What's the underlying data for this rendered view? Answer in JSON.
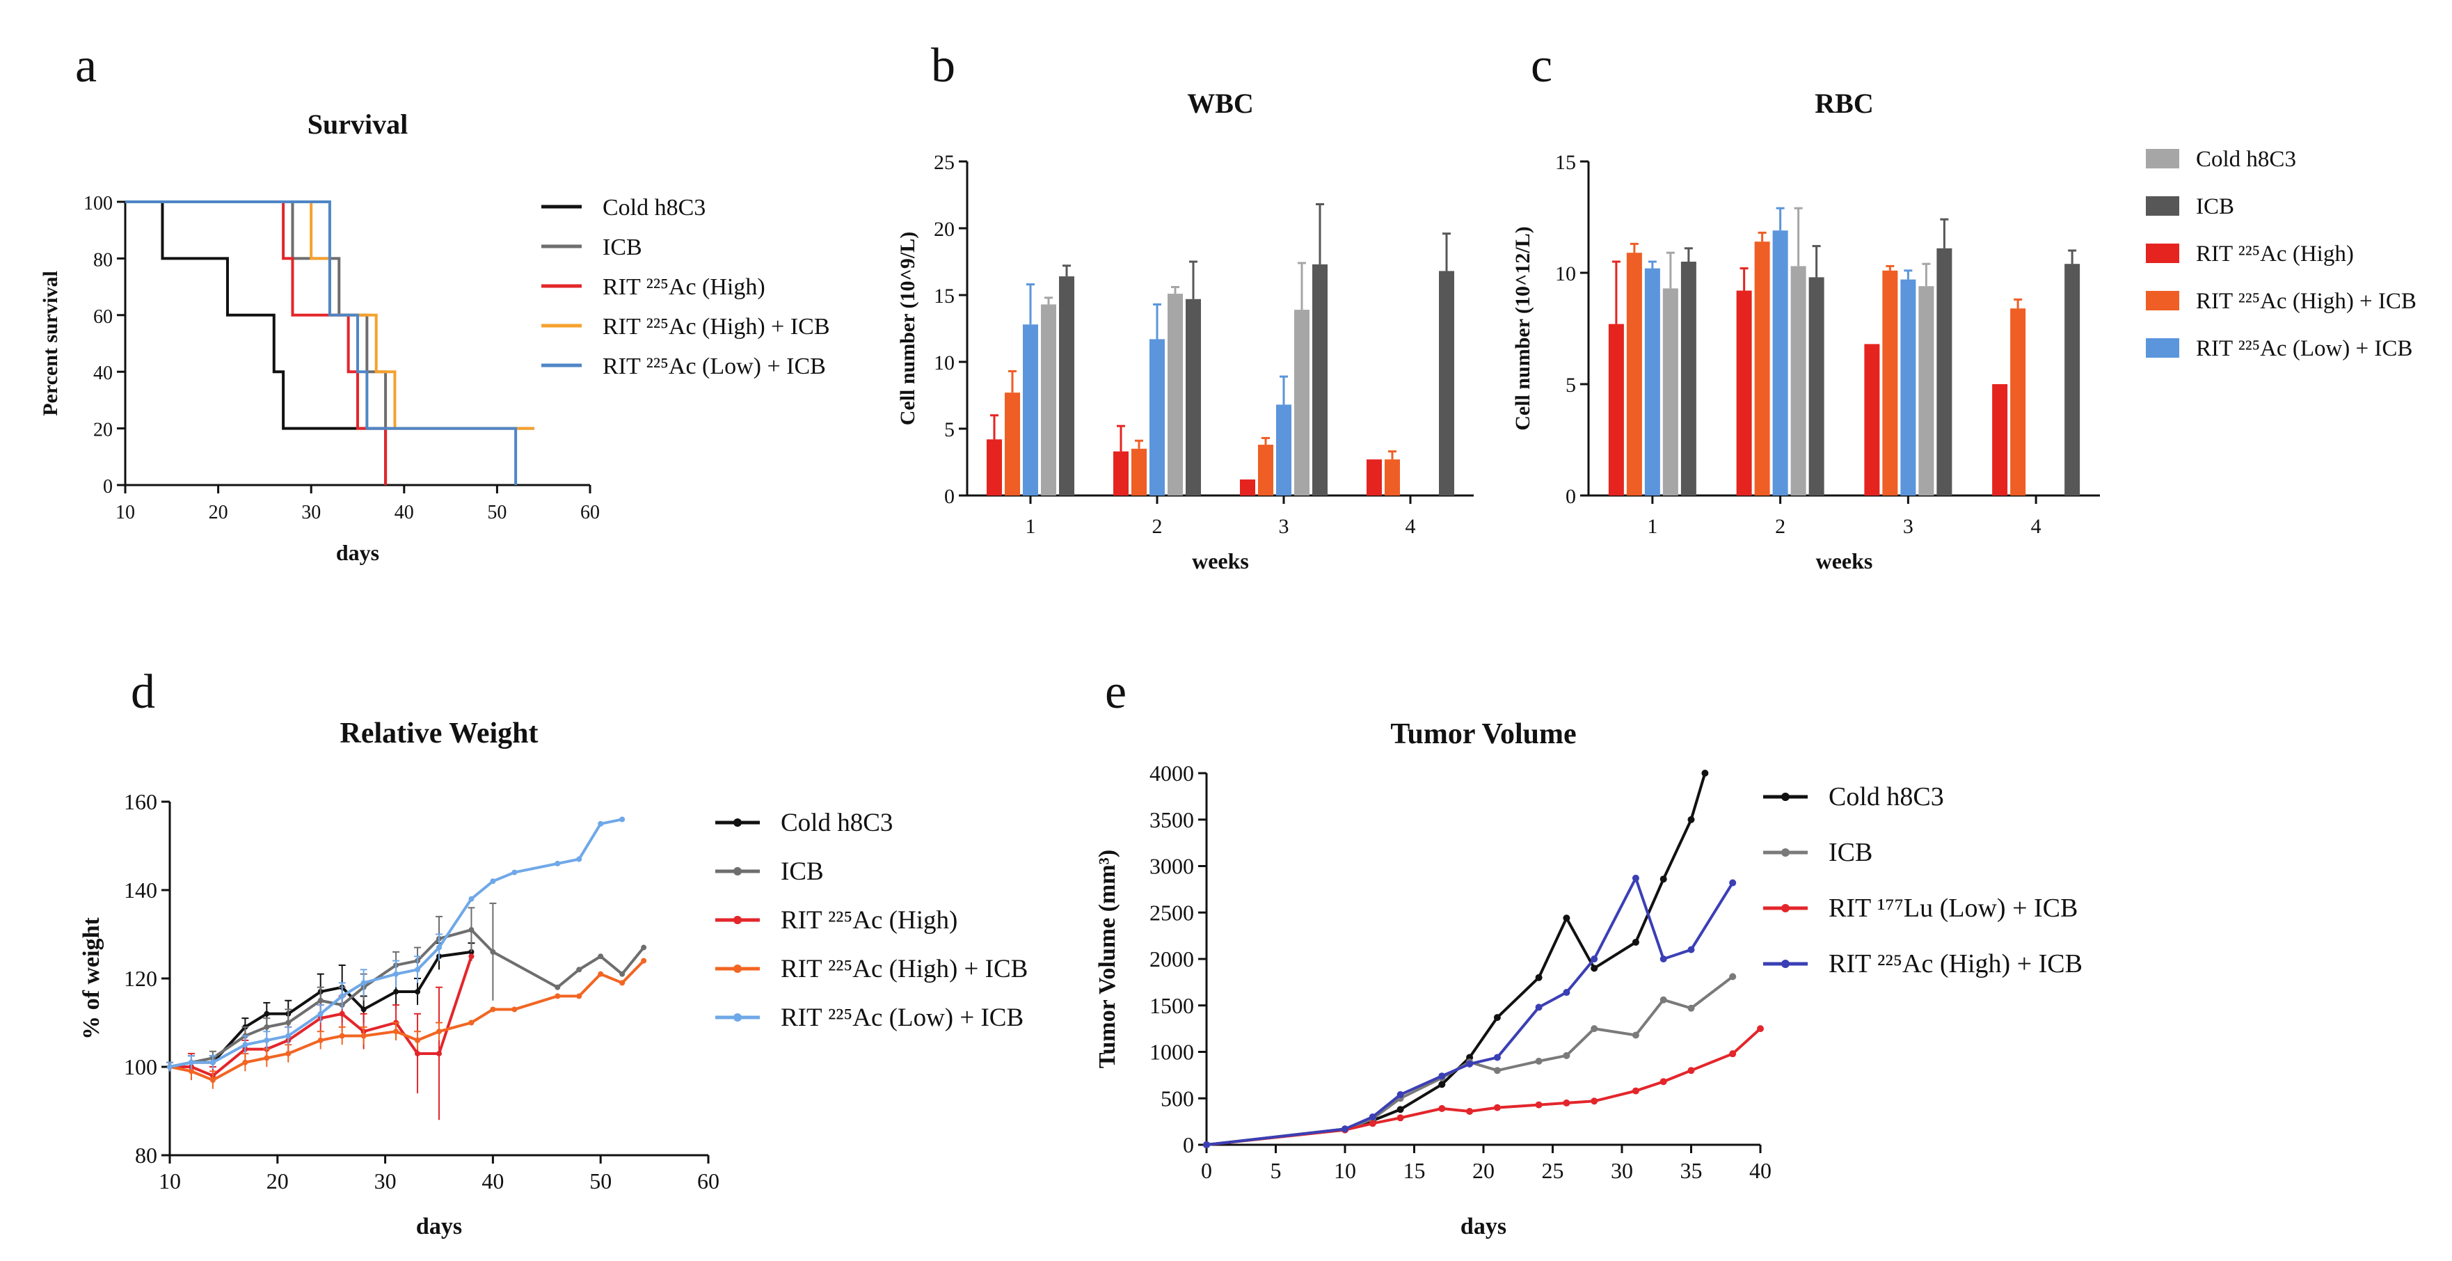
{
  "figure": {
    "panel_labels": [
      "a",
      "b",
      "c",
      "d",
      "e"
    ]
  },
  "chart_data": [
    {
      "id": "a",
      "type": "line",
      "step": true,
      "title": "Survival",
      "xlabel": "days",
      "ylabel": "Percent survival",
      "xlim": [
        10,
        60
      ],
      "ylim": [
        0,
        100
      ],
      "xticks": [
        10,
        20,
        30,
        40,
        50,
        60
      ],
      "yticks": [
        0,
        20,
        40,
        60,
        80,
        100
      ],
      "legend": "right",
      "series": [
        {
          "name": "Cold h8C3",
          "color": "#111111",
          "x": [
            10,
            14,
            21,
            26,
            27,
            28,
            38,
            38
          ],
          "y": [
            100,
            80,
            60,
            40,
            20,
            20,
            20,
            0
          ]
        },
        {
          "name": "ICB",
          "color": "#6e6e6e",
          "x": [
            10,
            28,
            33,
            36,
            38,
            40,
            54
          ],
          "y": [
            100,
            80,
            60,
            40,
            20,
            20,
            20
          ]
        },
        {
          "name": "RIT ²²⁵Ac (High)",
          "color": "#e3262b",
          "x": [
            10,
            27,
            28,
            34,
            35,
            38,
            38
          ],
          "y": [
            100,
            80,
            60,
            40,
            20,
            20,
            0
          ]
        },
        {
          "name": "RIT ²²⁵Ac (High) + ICB",
          "color": "#f5a12e",
          "x": [
            10,
            30,
            32,
            37,
            39,
            54
          ],
          "y": [
            100,
            80,
            60,
            40,
            20,
            20
          ]
        },
        {
          "name": "RIT ²²⁵Ac (Low) + ICB",
          "color": "#4f86c6",
          "x": [
            10,
            32,
            35,
            36,
            52,
            52
          ],
          "y": [
            100,
            60,
            40,
            20,
            20,
            0
          ]
        }
      ]
    },
    {
      "id": "b",
      "type": "bar",
      "title": "WBC",
      "xlabel": "weeks",
      "ylabel": "Cell number (10^9/L)",
      "categories": [
        "1",
        "2",
        "3",
        "4"
      ],
      "ylim": [
        0,
        25
      ],
      "yticks": [
        0,
        5,
        10,
        15,
        20,
        25
      ],
      "series": [
        {
          "name": "RIT ²²⁵Ac (High)",
          "color": "#e52420",
          "values": [
            4.2,
            3.3,
            1.2,
            2.7
          ],
          "errors": [
            1.8,
            1.9,
            0,
            0
          ]
        },
        {
          "name": "RIT ²²⁵Ac (High) + ICB",
          "color": "#ef5e24",
          "values": [
            7.7,
            3.5,
            3.8,
            2.7
          ],
          "errors": [
            1.6,
            0.6,
            0.5,
            0.6
          ]
        },
        {
          "name": "RIT ²²⁵Ac (Low) + ICB",
          "color": "#5b95dc",
          "values": [
            12.8,
            11.7,
            6.8,
            null
          ],
          "errors": [
            3.0,
            2.6,
            2.1,
            0
          ]
        },
        {
          "name": "Cold h8C3",
          "color": "#a6a6a6",
          "values": [
            14.3,
            15.1,
            13.9,
            null
          ],
          "errors": [
            0.5,
            0.5,
            3.5,
            0
          ]
        },
        {
          "name": "ICB",
          "color": "#575757",
          "values": [
            16.4,
            14.7,
            17.3,
            16.8
          ],
          "errors": [
            0.8,
            2.8,
            4.5,
            2.8
          ]
        }
      ]
    },
    {
      "id": "c",
      "type": "bar",
      "title": "RBC",
      "xlabel": "weeks",
      "ylabel": "Cell number (10^12/L)",
      "categories": [
        "1",
        "2",
        "3",
        "4"
      ],
      "ylim": [
        0,
        15
      ],
      "yticks": [
        0,
        5,
        10,
        15
      ],
      "legend": "right",
      "series": [
        {
          "name": "RIT ²²⁵Ac (High)",
          "color": "#e52420",
          "values": [
            7.7,
            9.2,
            6.8,
            5.0
          ],
          "errors": [
            2.8,
            1.0,
            0,
            0
          ]
        },
        {
          "name": "RIT ²²⁵Ac (High) + ICB",
          "color": "#ef5e24",
          "values": [
            10.9,
            11.4,
            10.1,
            8.4
          ],
          "errors": [
            0.4,
            0.4,
            0.2,
            0.4
          ]
        },
        {
          "name": "RIT ²²⁵Ac (Low) + ICB",
          "color": "#5b95dc",
          "values": [
            10.2,
            11.9,
            9.7,
            null
          ],
          "errors": [
            0.3,
            1.0,
            0.4,
            0
          ]
        },
        {
          "name": "Cold h8C3",
          "color": "#a6a6a6",
          "values": [
            9.3,
            10.3,
            9.4,
            null
          ],
          "errors": [
            1.6,
            2.6,
            1.0,
            0
          ]
        },
        {
          "name": "ICB",
          "color": "#575757",
          "values": [
            10.5,
            9.8,
            11.1,
            10.4
          ],
          "errors": [
            0.6,
            1.4,
            1.3,
            0.6
          ]
        }
      ]
    },
    {
      "id": "d",
      "type": "line",
      "title": "Relative Weight",
      "xlabel": "days",
      "ylabel": "% of weight",
      "xlim": [
        10,
        60
      ],
      "ylim": [
        80,
        160
      ],
      "xticks": [
        10,
        20,
        30,
        40,
        50,
        60
      ],
      "yticks": [
        80,
        100,
        120,
        140,
        160
      ],
      "legend": "right",
      "series": [
        {
          "name": "Cold h8C3",
          "color": "#111111",
          "x": [
            10,
            12,
            14,
            17,
            19,
            21,
            24,
            26,
            28,
            31,
            33,
            35,
            38
          ],
          "y": [
            100,
            101,
            101,
            109,
            112,
            112,
            117,
            118,
            113,
            117,
            117,
            125,
            126
          ],
          "err": [
            1,
            1.5,
            1.5,
            2,
            2.5,
            3,
            4,
            5,
            3,
            4,
            3,
            3,
            2
          ]
        },
        {
          "name": "ICB",
          "color": "#6e6e6e",
          "x": [
            10,
            12,
            14,
            17,
            19,
            21,
            24,
            26,
            28,
            31,
            33,
            35,
            38,
            40,
            46,
            48,
            50,
            52,
            54
          ],
          "y": [
            100,
            101,
            102,
            107,
            109,
            110,
            115,
            114,
            118,
            123,
            124,
            129,
            131,
            126,
            118,
            122,
            125,
            121,
            127
          ],
          "err": [
            1,
            1.5,
            1.5,
            2,
            2,
            3,
            3,
            4,
            3,
            3,
            3,
            5,
            5,
            11,
            0,
            0,
            0,
            0,
            0
          ]
        },
        {
          "name": "RIT ²²⁵Ac (High)",
          "color": "#e3262b",
          "x": [
            10,
            12,
            14,
            17,
            19,
            21,
            24,
            26,
            28,
            31,
            33,
            35,
            38
          ],
          "y": [
            100,
            100,
            98,
            104,
            104,
            106,
            111,
            112,
            108,
            110,
            103,
            103,
            125
          ],
          "err": [
            1,
            3,
            2,
            2,
            2,
            3,
            3,
            4,
            4,
            4,
            9,
            15,
            0
          ]
        },
        {
          "name": "RIT ²²⁵Ac (High) + ICB",
          "color": "#f26522",
          "x": [
            10,
            12,
            14,
            17,
            19,
            21,
            24,
            26,
            28,
            31,
            33,
            35,
            38,
            40,
            42,
            46,
            48,
            50,
            52,
            54
          ],
          "y": [
            100,
            99,
            97,
            101,
            102,
            103,
            106,
            107,
            107,
            108,
            106,
            108,
            110,
            113,
            113,
            116,
            116,
            121,
            119,
            124
          ],
          "err": [
            1,
            2,
            2,
            2,
            2,
            2,
            2,
            2,
            2,
            2,
            2,
            2,
            0,
            0,
            0,
            0,
            0,
            0,
            0,
            0
          ]
        },
        {
          "name": "RIT ²²⁵Ac (Low) + ICB",
          "color": "#6fa8e8",
          "x": [
            10,
            12,
            14,
            17,
            19,
            21,
            24,
            26,
            28,
            31,
            33,
            35,
            38,
            40,
            42,
            46,
            48,
            50,
            52
          ],
          "y": [
            100,
            101,
            101,
            105,
            106,
            107,
            112,
            116,
            119,
            121,
            122,
            127,
            138,
            142,
            144,
            146,
            147,
            155,
            156
          ],
          "err": [
            1,
            1.5,
            1.5,
            2,
            2,
            2,
            2,
            3,
            3,
            3,
            3,
            3,
            0,
            0,
            0,
            0,
            0,
            0,
            0
          ]
        }
      ]
    },
    {
      "id": "e",
      "type": "line",
      "title": "Tumor Volume",
      "xlabel": "days",
      "ylabel": "Tumor Volume (mm³)",
      "xlim": [
        0,
        40
      ],
      "ylim": [
        0,
        4000
      ],
      "xticks": [
        0,
        5,
        10,
        15,
        20,
        25,
        30,
        35,
        40
      ],
      "yticks": [
        0,
        500,
        1000,
        1500,
        2000,
        2500,
        3000,
        3500,
        4000
      ],
      "legend": "right",
      "series": [
        {
          "name": "Cold h8C3",
          "color": "#111111",
          "x": [
            0,
            10,
            12,
            14,
            17,
            19,
            21,
            24,
            26,
            28,
            31,
            33,
            35,
            36
          ],
          "y": [
            0,
            170,
            260,
            380,
            650,
            940,
            1370,
            1800,
            2440,
            1900,
            2180,
            2860,
            3500,
            4000
          ]
        },
        {
          "name": "ICB",
          "color": "#7a7a7a",
          "x": [
            0,
            10,
            12,
            14,
            17,
            19,
            21,
            24,
            26,
            28,
            31,
            33,
            35,
            38
          ],
          "y": [
            0,
            160,
            280,
            500,
            720,
            890,
            800,
            900,
            960,
            1250,
            1180,
            1560,
            1470,
            1810
          ]
        },
        {
          "name": "RIT ¹⁷⁷Lu (Low) + ICB",
          "color": "#e3262b",
          "x": [
            0,
            10,
            12,
            14,
            17,
            19,
            21,
            24,
            26,
            28,
            31,
            33,
            35,
            38,
            40
          ],
          "y": [
            0,
            160,
            230,
            290,
            390,
            360,
            400,
            430,
            450,
            470,
            580,
            680,
            800,
            980,
            1250
          ]
        },
        {
          "name": "RIT ²²⁵Ac (High) + ICB",
          "color": "#3b3fb5",
          "x": [
            0,
            10,
            12,
            14,
            17,
            19,
            21,
            24,
            26,
            28,
            31,
            33,
            35,
            38
          ],
          "y": [
            0,
            170,
            300,
            540,
            740,
            870,
            940,
            1480,
            1640,
            2000,
            2870,
            2000,
            2100,
            2820
          ]
        }
      ]
    }
  ]
}
